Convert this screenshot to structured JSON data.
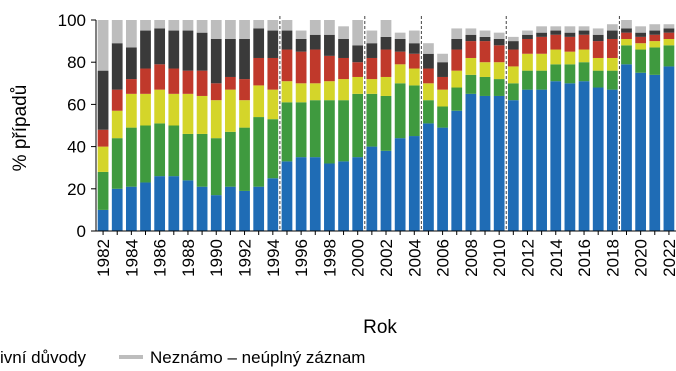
{
  "chart_data": {
    "type": "bar",
    "stacked": true,
    "title": "",
    "xlabel": "Rok",
    "ylabel": "% případů",
    "ylim": [
      0,
      100
    ],
    "yticks": [
      0,
      20,
      40,
      60,
      80,
      100
    ],
    "grid": false,
    "legend_position": "bottom",
    "categories": [
      1982,
      1983,
      1984,
      1985,
      1986,
      1987,
      1988,
      1989,
      1990,
      1991,
      1992,
      1993,
      1994,
      1995,
      1996,
      1997,
      1998,
      1999,
      2000,
      2001,
      2002,
      2003,
      2004,
      2005,
      2006,
      2007,
      2008,
      2009,
      2010,
      2011,
      2012,
      2013,
      2014,
      2015,
      2016,
      2017,
      2018,
      2019,
      2020,
      2021,
      2022
    ],
    "xtick_labels": [
      "1982",
      "1984",
      "1986",
      "1988",
      "1990",
      "1992",
      "1994",
      "1996",
      "1998",
      "2000",
      "2002",
      "2004",
      "2006",
      "2008",
      "2010",
      "2012",
      "2014",
      "2016",
      "2018",
      "2020",
      "2022"
    ],
    "period_dividers_after": [
      1994,
      2000,
      2004,
      2010,
      2018
    ],
    "series": [
      {
        "name": "",
        "color": "#1f6cb5",
        "values": [
          10,
          20,
          21,
          23,
          26,
          26,
          24,
          21,
          17,
          21,
          19,
          21,
          25,
          33,
          35,
          35,
          32,
          33,
          35,
          40,
          38,
          44,
          45,
          51,
          49,
          57,
          65,
          64,
          64,
          62,
          67,
          67,
          71,
          70,
          71,
          68,
          67,
          79,
          75,
          74,
          78
        ]
      },
      {
        "name": "",
        "color": "#3f9a3f",
        "values": [
          18,
          24,
          28,
          27,
          25,
          24,
          22,
          25,
          27,
          26,
          30,
          33,
          28,
          28,
          26,
          27,
          30,
          29,
          30,
          25,
          26,
          26,
          24,
          11,
          10,
          11,
          9,
          9,
          8,
          8,
          9,
          9,
          8,
          9,
          9,
          8,
          9,
          9,
          11,
          13,
          10
        ]
      },
      {
        "name": "",
        "color": "#d4d52a",
        "values": [
          12,
          13,
          16,
          15,
          16,
          15,
          19,
          18,
          18,
          20,
          13,
          15,
          14,
          10,
          9,
          8,
          9,
          10,
          8,
          7,
          9,
          9,
          8,
          8,
          8,
          8,
          8,
          7,
          8,
          8,
          8,
          8,
          7,
          6,
          6,
          6,
          6,
          3,
          3,
          3,
          3
        ]
      },
      {
        "name": "",
        "color": "#c0392b",
        "values": [
          8,
          10,
          7,
          12,
          12,
          12,
          11,
          12,
          8,
          6,
          10,
          13,
          15,
          15,
          15,
          16,
          12,
          10,
          7,
          10,
          13,
          6,
          7,
          7,
          6,
          10,
          8,
          10,
          8,
          8,
          7,
          8,
          7,
          7,
          7,
          8,
          9,
          3,
          3,
          3,
          3
        ]
      },
      {
        "name": "",
        "color": "#3a3a3a",
        "values": [
          28,
          22,
          15,
          18,
          17,
          18,
          19,
          18,
          21,
          18,
          19,
          14,
          13,
          9,
          6,
          7,
          10,
          9,
          8,
          7,
          6,
          6,
          5,
          7,
          7,
          5,
          3,
          2,
          3,
          4,
          2,
          2,
          2,
          2,
          2,
          3,
          4,
          2,
          2,
          2,
          2
        ]
      },
      {
        "name": "Neznámo – neúplný záznam",
        "color": "#bdbdbd",
        "values": [
          24,
          11,
          13,
          5,
          4,
          5,
          5,
          6,
          9,
          9,
          9,
          4,
          5,
          5,
          4,
          7,
          7,
          6,
          12,
          6,
          8,
          3,
          6,
          5,
          4,
          5,
          3,
          3,
          3,
          2,
          2,
          3,
          2,
          3,
          2,
          3,
          3,
          4,
          3,
          3,
          2
        ]
      }
    ],
    "legend": {
      "left_fragment": "ivní důvody",
      "right_label": "Neznámo – neúplný záznam",
      "right_color": "#bdbdbd"
    }
  }
}
